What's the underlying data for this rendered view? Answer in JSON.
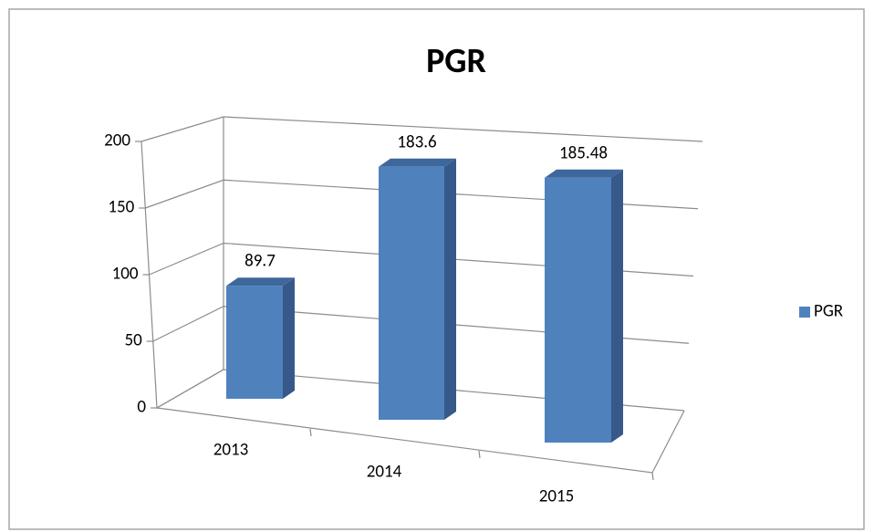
{
  "chart_data": {
    "type": "bar3d",
    "title": "PGR",
    "categories": [
      "2013",
      "2014",
      "2015"
    ],
    "series": [
      {
        "name": "PGR",
        "color": "#4f81bd",
        "values": [
          89.7,
          183.6,
          185.48
        ]
      }
    ],
    "ylim": [
      0,
      200
    ],
    "yticks": [
      0,
      50,
      100,
      150,
      200
    ],
    "grid": true,
    "legend": "right"
  }
}
